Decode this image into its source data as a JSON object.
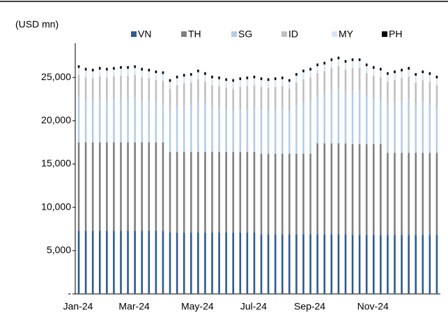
{
  "chart_data": {
    "type": "stacked_bar",
    "y_label": "(USD mn)",
    "categories": [
      "Jan-24",
      null,
      null,
      null,
      null,
      null,
      null,
      null,
      "Mar-24",
      null,
      null,
      null,
      null,
      null,
      null,
      null,
      null,
      "May-24",
      null,
      null,
      null,
      null,
      null,
      null,
      null,
      "Jul-24",
      null,
      null,
      null,
      null,
      null,
      null,
      null,
      "Sep-24",
      null,
      null,
      null,
      null,
      null,
      null,
      null,
      null,
      "Nov-24",
      null,
      null,
      null,
      null,
      null,
      null,
      null,
      null,
      null
    ],
    "series": [
      {
        "name": "VN",
        "color": "#2e5a8f",
        "values": [
          7300,
          7300,
          7300,
          7300,
          7300,
          7300,
          7300,
          7300,
          7300,
          7300,
          7300,
          7300,
          7300,
          7100,
          7100,
          7100,
          7100,
          7100,
          7100,
          7100,
          7100,
          7100,
          7100,
          7100,
          7100,
          7100,
          6900,
          6900,
          6900,
          6900,
          6900,
          6900,
          6900,
          6900,
          6900,
          6900,
          6900,
          6900,
          6900,
          6800,
          6800,
          6800,
          6800,
          6800,
          6800,
          6800,
          6800,
          6800,
          6800,
          6800,
          6800,
          6800
        ]
      },
      {
        "name": "TH",
        "color": "#7f7f7f",
        "values": [
          10200,
          10200,
          10200,
          10200,
          10200,
          10200,
          10200,
          10200,
          10200,
          10200,
          10200,
          10200,
          10200,
          9300,
          9300,
          9300,
          9300,
          9300,
          9300,
          9300,
          9300,
          9300,
          9300,
          9300,
          9300,
          9300,
          9300,
          9300,
          9300,
          9300,
          9300,
          9300,
          9300,
          9300,
          10500,
          10500,
          10500,
          10500,
          10500,
          10500,
          10500,
          10500,
          10500,
          10500,
          9500,
          9500,
          9500,
          9500,
          9500,
          9500,
          9500,
          9500
        ]
      },
      {
        "name": "SG",
        "color": "#b4cde6",
        "values": [
          5200,
          4900,
          4800,
          5000,
          4900,
          5000,
          5100,
          5100,
          5200,
          4900,
          4800,
          4600,
          4500,
          4700,
          5100,
          5300,
          5400,
          5800,
          5500,
          5100,
          5000,
          4800,
          4700,
          4900,
          5000,
          5100,
          5100,
          5000,
          5100,
          5200,
          4900,
          5600,
          6000,
          6200,
          5500,
          5700,
          6100,
          6300,
          5900,
          6200,
          6200,
          5600,
          5300,
          5100,
          5600,
          5800,
          6000,
          6200,
          5500,
          5800,
          5600,
          5200
        ]
      },
      {
        "name": "ID",
        "color": "#bfbfbf",
        "values": [
          2600,
          2600,
          2600,
          2600,
          2600,
          2600,
          2600,
          2600,
          2600,
          2600,
          2600,
          2600,
          2600,
          2600,
          2600,
          2600,
          2600,
          2600,
          2600,
          2600,
          2600,
          2600,
          2600,
          2600,
          2600,
          2600,
          2600,
          2600,
          2600,
          2600,
          2600,
          2600,
          2600,
          2600,
          2600,
          2600,
          2600,
          2600,
          2600,
          2600,
          2600,
          2600,
          2600,
          2600,
          2600,
          2600,
          2600,
          2600,
          2600,
          2600,
          2600,
          2600
        ]
      },
      {
        "name": "MY",
        "color": "#dce6f2",
        "values": [
          800,
          800,
          800,
          800,
          800,
          800,
          800,
          800,
          800,
          800,
          800,
          800,
          800,
          800,
          800,
          800,
          800,
          800,
          800,
          800,
          800,
          800,
          800,
          800,
          800,
          800,
          800,
          800,
          800,
          800,
          800,
          800,
          800,
          800,
          800,
          800,
          800,
          800,
          800,
          800,
          800,
          800,
          800,
          800,
          800,
          800,
          800,
          800,
          800,
          800,
          800,
          800
        ]
      },
      {
        "name": "PH",
        "color": "#000000",
        "values": [
          300,
          300,
          300,
          300,
          300,
          300,
          300,
          300,
          300,
          300,
          300,
          300,
          300,
          300,
          300,
          300,
          300,
          300,
          300,
          300,
          300,
          300,
          300,
          300,
          300,
          300,
          300,
          300,
          300,
          300,
          300,
          300,
          300,
          300,
          300,
          300,
          300,
          300,
          300,
          300,
          300,
          300,
          300,
          300,
          300,
          300,
          300,
          300,
          300,
          300,
          300,
          300
        ]
      }
    ],
    "ylim": [
      0,
      30000
    ],
    "yticks": [
      {
        "value": 0,
        "label": "-"
      },
      {
        "value": 5000,
        "label": "5,000"
      },
      {
        "value": 10000,
        "label": "10,000"
      },
      {
        "value": 15000,
        "label": "15,000"
      },
      {
        "value": 20000,
        "label": "20,000"
      },
      {
        "value": 25000,
        "label": "25,000"
      }
    ],
    "legend": "top"
  }
}
